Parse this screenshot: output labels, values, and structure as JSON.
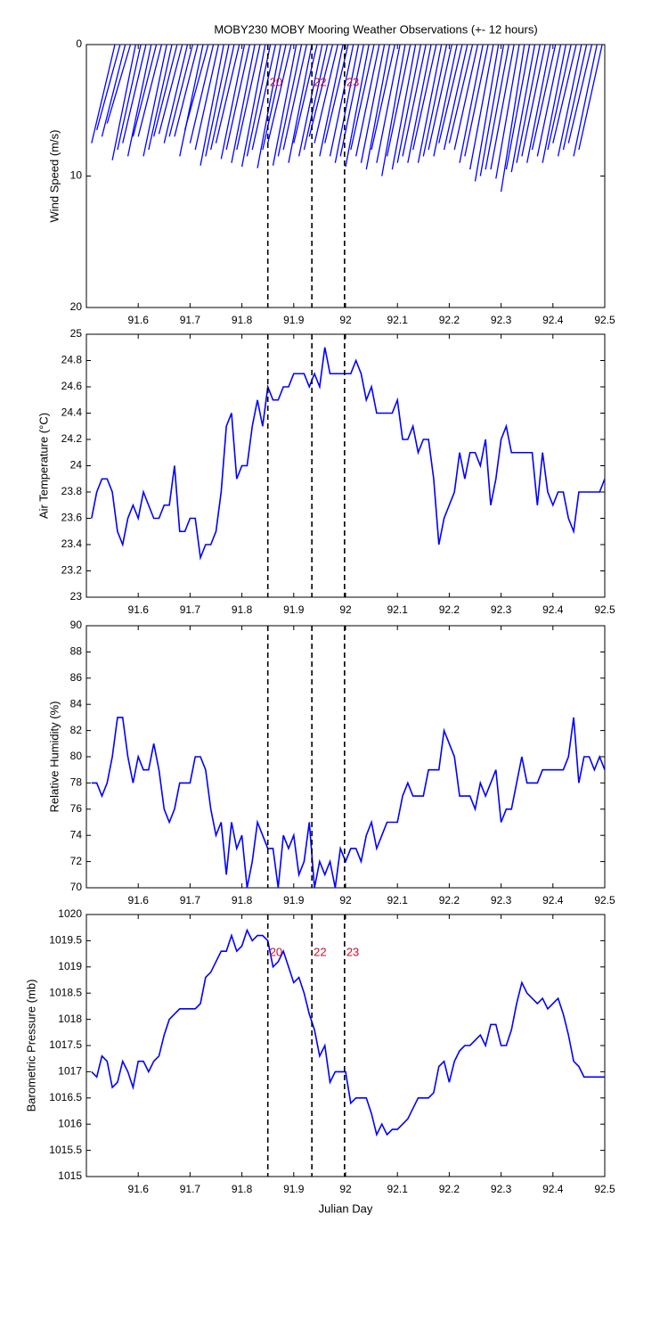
{
  "chart_data": [
    {
      "type": "wind_stick",
      "title": "MOBY230 MOBY Mooring Weather Observations (+- 12 hours)",
      "ylabel": "Wind Speed (m/s)",
      "x": [
        91.51,
        91.52,
        91.53,
        91.54,
        91.55,
        91.56,
        91.57,
        91.58,
        91.59,
        91.6,
        91.61,
        91.62,
        91.63,
        91.64,
        91.65,
        91.66,
        91.67,
        91.68,
        91.69,
        91.7,
        91.71,
        91.72,
        91.73,
        91.74,
        91.75,
        91.76,
        91.77,
        91.78,
        91.79,
        91.8,
        91.81,
        91.82,
        91.83,
        91.84,
        91.85,
        91.86,
        91.87,
        91.88,
        91.89,
        91.9,
        91.91,
        91.92,
        91.93,
        91.94,
        91.95,
        91.96,
        91.97,
        91.98,
        91.99,
        92,
        92.01,
        92.02,
        92.03,
        92.04,
        92.05,
        92.06,
        92.07,
        92.08,
        92.09,
        92.1,
        92.11,
        92.12,
        92.13,
        92.14,
        92.15,
        92.16,
        92.17,
        92.18,
        92.19,
        92.2,
        92.21,
        92.22,
        92.23,
        92.24,
        92.25,
        92.26,
        92.27,
        92.28,
        92.29,
        92.3,
        92.31,
        92.32,
        92.33,
        92.34,
        92.35,
        92.36,
        92.37,
        92.38,
        92.39,
        92.4,
        92.41,
        92.42,
        92.43,
        92.44,
        92.45
      ],
      "values": [
        7.5,
        6.5,
        7,
        6,
        8.8,
        8,
        7.5,
        8.5,
        7,
        7,
        8.5,
        8,
        7,
        6.8,
        7.5,
        7,
        7,
        8.5,
        6.5,
        7.5,
        8,
        9.2,
        8.5,
        8,
        7.5,
        8.7,
        8,
        9,
        8,
        9.3,
        8.5,
        8,
        9.4,
        8,
        7.5,
        9.2,
        8.5,
        8,
        9,
        7.5,
        8.5,
        8,
        7,
        7.5,
        8.5,
        7.5,
        8.5,
        9,
        8.5,
        9.3,
        8,
        8.5,
        9,
        9.5,
        8,
        9,
        10,
        8.5,
        9.5,
        9,
        8.5,
        9,
        8,
        9,
        8.5,
        8,
        8.5,
        7.5,
        8,
        7.5,
        8,
        9,
        8.5,
        9.5,
        10.4,
        10,
        9.5,
        9.5,
        10.2,
        11.2,
        9.5,
        9.7,
        9,
        8.5,
        9,
        8,
        8.5,
        9,
        8,
        7.5,
        8.5,
        8,
        7.5,
        8.5,
        8
      ],
      "dx": 0.045,
      "color": "#0000ff",
      "xlim": [
        91.5,
        92.5
      ],
      "xticks": [
        91.6,
        91.7,
        91.8,
        91.9,
        92,
        92.1,
        92.2,
        92.3,
        92.4,
        92.5
      ],
      "ylim": [
        20,
        0
      ],
      "yticks": [
        0,
        10,
        20
      ],
      "vlines": [
        91.85,
        91.935,
        91.998
      ],
      "vline_labels": [
        "20",
        "22",
        "23"
      ]
    },
    {
      "type": "line",
      "ylabel": "Air Temperature (°C)",
      "x": [
        91.51,
        91.52,
        91.53,
        91.54,
        91.55,
        91.56,
        91.57,
        91.58,
        91.59,
        91.6,
        91.61,
        91.62,
        91.63,
        91.64,
        91.65,
        91.66,
        91.67,
        91.68,
        91.69,
        91.7,
        91.71,
        91.72,
        91.73,
        91.74,
        91.75,
        91.76,
        91.77,
        91.78,
        91.79,
        91.8,
        91.81,
        91.82,
        91.83,
        91.84,
        91.85,
        91.86,
        91.87,
        91.88,
        91.89,
        91.9,
        91.91,
        91.92,
        91.93,
        91.94,
        91.95,
        91.96,
        91.97,
        91.98,
        91.99,
        92,
        92.01,
        92.02,
        92.03,
        92.04,
        92.05,
        92.06,
        92.07,
        92.08,
        92.09,
        92.1,
        92.11,
        92.12,
        92.13,
        92.14,
        92.15,
        92.16,
        92.17,
        92.18,
        92.19,
        92.2,
        92.21,
        92.22,
        92.23,
        92.24,
        92.25,
        92.26,
        92.27,
        92.28,
        92.29,
        92.3,
        92.31,
        92.32,
        92.33,
        92.34,
        92.35,
        92.36,
        92.37,
        92.38,
        92.39,
        92.4,
        92.41,
        92.42,
        92.43,
        92.44,
        92.45,
        92.46,
        92.47,
        92.48,
        92.49,
        92.5
      ],
      "values": [
        23.6,
        23.8,
        23.9,
        23.9,
        23.8,
        23.5,
        23.4,
        23.6,
        23.7,
        23.6,
        23.8,
        23.7,
        23.6,
        23.6,
        23.7,
        23.7,
        24.0,
        23.5,
        23.5,
        23.6,
        23.6,
        23.3,
        23.4,
        23.4,
        23.5,
        23.8,
        24.3,
        24.4,
        23.9,
        24.0,
        24.0,
        24.3,
        24.5,
        24.3,
        24.6,
        24.5,
        24.5,
        24.6,
        24.6,
        24.7,
        24.7,
        24.7,
        24.6,
        24.7,
        24.6,
        24.9,
        24.7,
        24.7,
        24.7,
        24.7,
        24.7,
        24.8,
        24.7,
        24.5,
        24.6,
        24.4,
        24.4,
        24.4,
        24.4,
        24.5,
        24.2,
        24.2,
        24.3,
        24.1,
        24.2,
        24.2,
        23.9,
        23.4,
        23.6,
        23.7,
        23.8,
        24.1,
        23.9,
        24.1,
        24.1,
        24.0,
        24.2,
        23.7,
        23.9,
        24.2,
        24.3,
        24.1,
        24.1,
        24.1,
        24.1,
        24.1,
        23.7,
        24.1,
        23.8,
        23.7,
        23.8,
        23.8,
        23.6,
        23.5,
        23.8,
        23.8,
        23.8,
        23.8,
        23.8,
        23.9
      ],
      "color": "#0000ff",
      "xlim": [
        91.5,
        92.5
      ],
      "xticks": [
        91.6,
        91.7,
        91.8,
        91.9,
        92,
        92.1,
        92.2,
        92.3,
        92.4,
        92.5
      ],
      "ylim": [
        23,
        25
      ],
      "yticks": [
        23,
        23.2,
        23.4,
        23.6,
        23.8,
        24,
        24.2,
        24.4,
        24.6,
        24.8,
        25
      ],
      "vlines": [
        91.85,
        91.935,
        91.998
      ]
    },
    {
      "type": "line",
      "ylabel": "Relative Humidity (%)",
      "x": [
        91.51,
        91.52,
        91.53,
        91.54,
        91.55,
        91.56,
        91.57,
        91.58,
        91.59,
        91.6,
        91.61,
        91.62,
        91.63,
        91.64,
        91.65,
        91.66,
        91.67,
        91.68,
        91.69,
        91.7,
        91.71,
        91.72,
        91.73,
        91.74,
        91.75,
        91.76,
        91.77,
        91.78,
        91.79,
        91.8,
        91.81,
        91.82,
        91.83,
        91.84,
        91.85,
        91.86,
        91.87,
        91.88,
        91.89,
        91.9,
        91.91,
        91.92,
        91.93,
        91.94,
        91.95,
        91.96,
        91.97,
        91.98,
        91.99,
        92,
        92.01,
        92.02,
        92.03,
        92.04,
        92.05,
        92.06,
        92.07,
        92.08,
        92.09,
        92.1,
        92.11,
        92.12,
        92.13,
        92.14,
        92.15,
        92.16,
        92.17,
        92.18,
        92.19,
        92.2,
        92.21,
        92.22,
        92.23,
        92.24,
        92.25,
        92.26,
        92.27,
        92.28,
        92.29,
        92.3,
        92.31,
        92.32,
        92.33,
        92.34,
        92.35,
        92.36,
        92.37,
        92.38,
        92.39,
        92.4,
        92.41,
        92.42,
        92.43,
        92.44,
        92.45,
        92.46,
        92.47,
        92.48,
        92.49,
        92.5
      ],
      "values": [
        78,
        78,
        77,
        78,
        80,
        83,
        83,
        80,
        78,
        80,
        79,
        79,
        81,
        79,
        76,
        75,
        76,
        78,
        78,
        78,
        80,
        80,
        79,
        76,
        74,
        75,
        71,
        75,
        73,
        74,
        70,
        72,
        75,
        74,
        73,
        73,
        70,
        74,
        73,
        74,
        71,
        72,
        75,
        70,
        72,
        71,
        72,
        70,
        73,
        72,
        73,
        73,
        72,
        74,
        75,
        73,
        74,
        75,
        75,
        75,
        77,
        78,
        77,
        77,
        77,
        79,
        79,
        79,
        82,
        81,
        80,
        77,
        77,
        77,
        76,
        78,
        77,
        78,
        79,
        75,
        76,
        76,
        78,
        80,
        78,
        78,
        78,
        79,
        79,
        79,
        79,
        79,
        80,
        83,
        78,
        80,
        80,
        79,
        80,
        79
      ],
      "color": "#0000ff",
      "xlim": [
        91.5,
        92.5
      ],
      "xticks": [
        91.6,
        91.7,
        91.8,
        91.9,
        92,
        92.1,
        92.2,
        92.3,
        92.4,
        92.5
      ],
      "ylim": [
        70,
        90
      ],
      "yticks": [
        70,
        72,
        74,
        76,
        78,
        80,
        82,
        84,
        86,
        88,
        90
      ],
      "vlines": [
        91.85,
        91.935,
        91.998
      ]
    },
    {
      "type": "line",
      "ylabel": "Barometric Pressure (mb)",
      "xlabel": "Julian Day",
      "x": [
        91.51,
        91.52,
        91.53,
        91.54,
        91.55,
        91.56,
        91.57,
        91.58,
        91.59,
        91.6,
        91.61,
        91.62,
        91.63,
        91.64,
        91.65,
        91.66,
        91.67,
        91.68,
        91.69,
        91.7,
        91.71,
        91.72,
        91.73,
        91.74,
        91.75,
        91.76,
        91.77,
        91.78,
        91.79,
        91.8,
        91.81,
        91.82,
        91.83,
        91.84,
        91.85,
        91.86,
        91.87,
        91.88,
        91.89,
        91.9,
        91.91,
        91.92,
        91.93,
        91.94,
        91.95,
        91.96,
        91.97,
        91.98,
        91.99,
        92,
        92.01,
        92.02,
        92.03,
        92.04,
        92.05,
        92.06,
        92.07,
        92.08,
        92.09,
        92.1,
        92.11,
        92.12,
        92.13,
        92.14,
        92.15,
        92.16,
        92.17,
        92.18,
        92.19,
        92.2,
        92.21,
        92.22,
        92.23,
        92.24,
        92.25,
        92.26,
        92.27,
        92.28,
        92.29,
        92.3,
        92.31,
        92.32,
        92.33,
        92.34,
        92.35,
        92.36,
        92.37,
        92.38,
        92.39,
        92.4,
        92.41,
        92.42,
        92.43,
        92.44,
        92.45,
        92.46,
        92.47,
        92.48,
        92.49,
        92.5
      ],
      "values": [
        1017.0,
        1016.9,
        1017.3,
        1017.2,
        1016.7,
        1016.8,
        1017.2,
        1017.0,
        1016.7,
        1017.2,
        1017.2,
        1017.0,
        1017.2,
        1017.3,
        1017.7,
        1018.0,
        1018.1,
        1018.2,
        1018.2,
        1018.2,
        1018.2,
        1018.3,
        1018.8,
        1018.9,
        1019.1,
        1019.3,
        1019.3,
        1019.6,
        1019.3,
        1019.4,
        1019.7,
        1019.5,
        1019.6,
        1019.6,
        1019.5,
        1019.0,
        1019.1,
        1019.3,
        1019.0,
        1018.7,
        1018.8,
        1018.5,
        1018.1,
        1017.8,
        1017.3,
        1017.5,
        1016.8,
        1017.0,
        1017.0,
        1017.0,
        1016.4,
        1016.5,
        1016.5,
        1016.5,
        1016.2,
        1015.8,
        1016.0,
        1015.8,
        1015.9,
        1015.9,
        1016.0,
        1016.1,
        1016.3,
        1016.5,
        1016.5,
        1016.5,
        1016.6,
        1017.1,
        1017.2,
        1016.8,
        1017.2,
        1017.4,
        1017.5,
        1017.5,
        1017.6,
        1017.7,
        1017.5,
        1017.9,
        1017.9,
        1017.5,
        1017.5,
        1017.8,
        1018.3,
        1018.7,
        1018.5,
        1018.4,
        1018.3,
        1018.4,
        1018.2,
        1018.3,
        1018.4,
        1018.1,
        1017.7,
        1017.2,
        1017.1,
        1016.9,
        1016.9,
        1016.9,
        1016.9,
        1016.9
      ],
      "color": "#0000ff",
      "xlim": [
        91.5,
        92.5
      ],
      "xticks": [
        91.6,
        91.7,
        91.8,
        91.9,
        92,
        92.1,
        92.2,
        92.3,
        92.4,
        92.5
      ],
      "ylim": [
        1015,
        1020
      ],
      "yticks": [
        1015,
        1015.5,
        1016,
        1016.5,
        1017,
        1017.5,
        1018,
        1018.5,
        1019,
        1019.5,
        1020
      ],
      "vlines": [
        91.85,
        91.935,
        91.998
      ],
      "vline_labels": [
        "20",
        "22",
        "23"
      ]
    }
  ]
}
